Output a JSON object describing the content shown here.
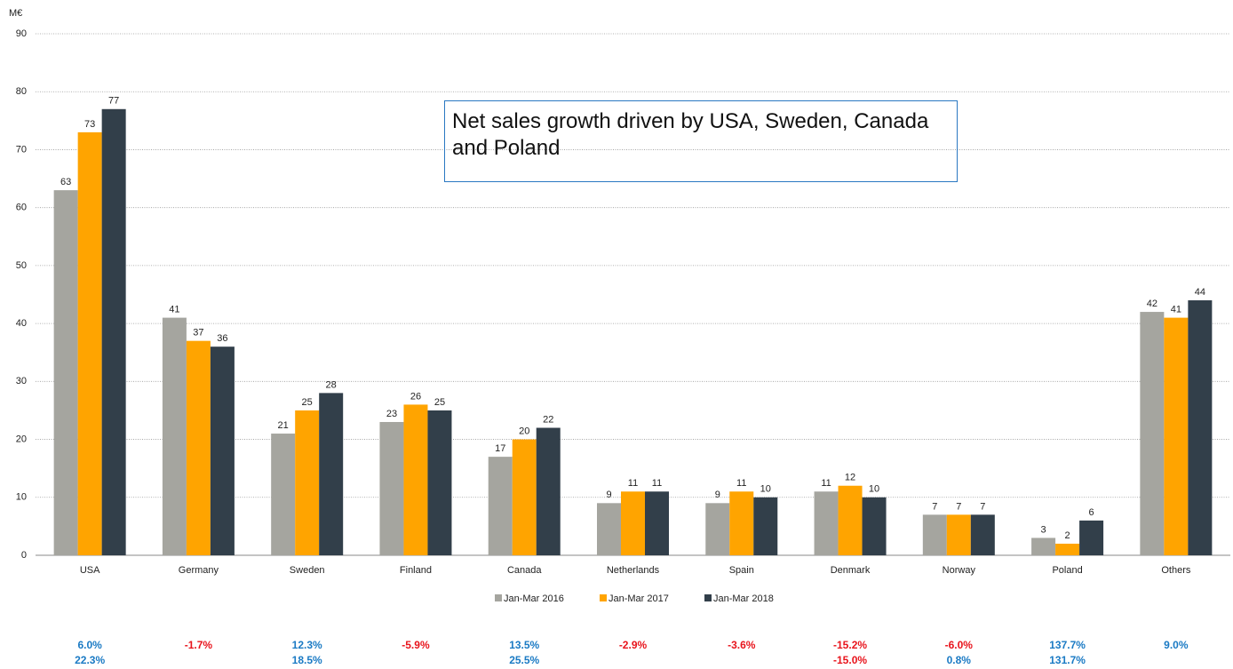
{
  "chart_data": {
    "type": "bar",
    "y_unit": "M€",
    "annotation": "Net sales growth driven by USA, Sweden, Canada and Poland",
    "categories": [
      "USA",
      "Germany",
      "Sweden",
      "Finland",
      "Canada",
      "Netherlands",
      "Spain",
      "Denmark",
      "Norway",
      "Poland",
      "Others"
    ],
    "series": [
      {
        "name": "Jan-Mar 2016",
        "color": "#a5a59f",
        "values": [
          63,
          41,
          21,
          23,
          17,
          9,
          9,
          11,
          7,
          3,
          42
        ]
      },
      {
        "name": "Jan-Mar 2017",
        "color": "#ffa400",
        "values": [
          73,
          37,
          25,
          26,
          20,
          11,
          11,
          12,
          7,
          2,
          41
        ]
      },
      {
        "name": "Jan-Mar 2018",
        "color": "#323f4a",
        "values": [
          77,
          36,
          28,
          25,
          22,
          11,
          10,
          10,
          7,
          6,
          44
        ]
      }
    ],
    "ylim": [
      0,
      90
    ],
    "yticks": [
      0,
      10,
      20,
      30,
      40,
      50,
      60,
      70,
      80,
      90
    ],
    "grid": true,
    "legend": "bottom",
    "growth_rows": [
      {
        "values": [
          6.0,
          -1.7,
          12.3,
          -5.9,
          13.5,
          -2.9,
          -3.6,
          -15.2,
          -6.0,
          137.7,
          9.0
        ],
        "value_labels": [
          "6.0%",
          "-1.7%",
          "12.3%",
          "-5.9%",
          "13.5%",
          "-2.9%",
          "-3.6%",
          "-15.2%",
          "-6.0%",
          "137.7%",
          "9.0%"
        ]
      },
      {
        "values": [
          22.3,
          null,
          18.5,
          null,
          25.5,
          null,
          null,
          -15.0,
          0.8,
          131.7,
          null
        ],
        "value_labels": [
          "22.3%",
          null,
          "18.5%",
          null,
          "25.5%",
          null,
          null,
          "-15.0%",
          "0.8%",
          "131.7%",
          null
        ]
      }
    ],
    "positive_color": "#1a7ac4",
    "negative_color": "#e8141c"
  }
}
